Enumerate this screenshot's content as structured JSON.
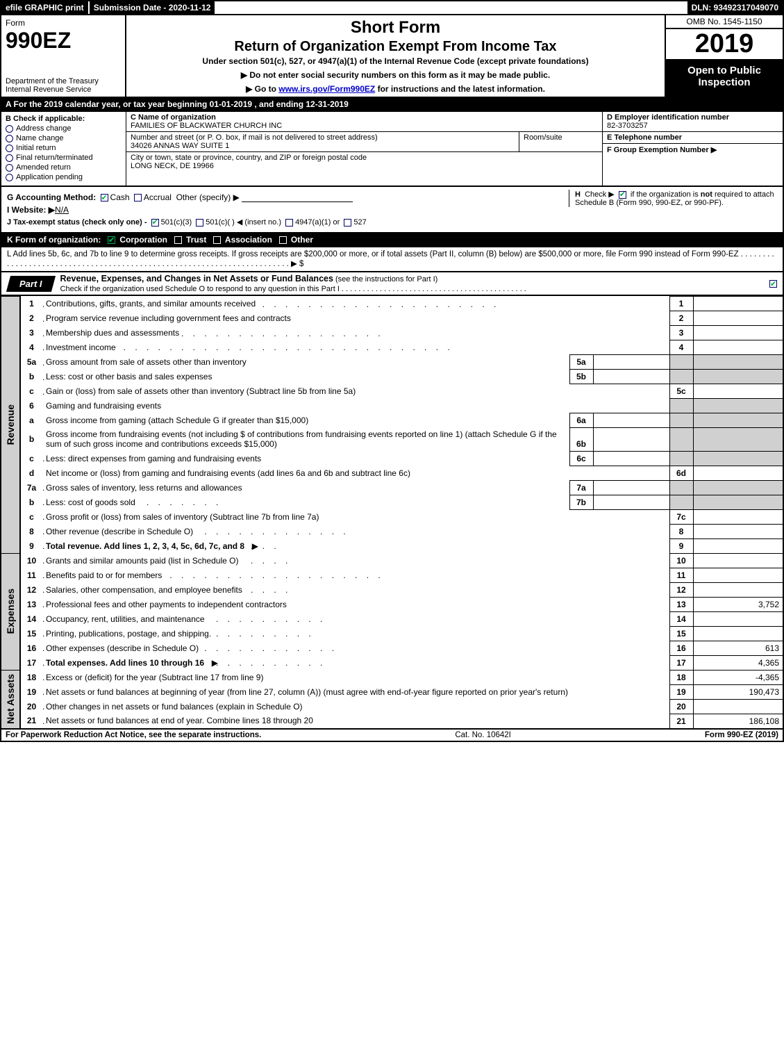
{
  "topbar": {
    "efile": "efile GRAPHIC print",
    "submission": "Submission Date - 2020-11-12",
    "dln": "DLN: 93492317049070"
  },
  "header": {
    "form_word": "Form",
    "form_no": "990EZ",
    "dept1": "Department of the Treasury",
    "dept2": "Internal Revenue Service",
    "short_form": "Short Form",
    "return_title": "Return of Organization Exempt From Income Tax",
    "under_sec": "Under section 501(c), 527, or 4947(a)(1) of the Internal Revenue Code (except private foundations)",
    "ssn_warn": "▶ Do not enter social security numbers on this form as it may be made public.",
    "goto": "▶ Go to ",
    "goto_link": "www.irs.gov/Form990EZ",
    "goto_tail": " for instructions and the latest information.",
    "omb": "OMB No. 1545-1150",
    "year": "2019",
    "open": "Open to Public Inspection"
  },
  "tax_year_bar": "A  For the 2019 calendar year, or tax year beginning 01-01-2019 , and ending 12-31-2019",
  "colB": {
    "hdr": "B  Check if applicable:",
    "items": [
      "Address change",
      "Name change",
      "Initial return",
      "Final return/terminated",
      "Amended return",
      "Application pending"
    ]
  },
  "colC": {
    "name_lbl": "C Name of organization",
    "name_val": "FAMILIES OF BLACKWATER CHURCH INC",
    "addr_lbl": "Number and street (or P. O. box, if mail is not delivered to street address)",
    "addr_val": "34026 ANNAS WAY SUITE 1",
    "room_lbl": "Room/suite",
    "city_lbl": "City or town, state or province, country, and ZIP or foreign postal code",
    "city_val": "LONG NECK, DE  19966"
  },
  "colDEF": {
    "d_lbl": "D Employer identification number",
    "d_val": "82-3703257",
    "e_lbl": "E Telephone number",
    "f_lbl": "F Group Exemption Number   ▶"
  },
  "gij": {
    "g": "G Accounting Method:",
    "g_cash": "Cash",
    "g_accrual": "Accrual",
    "g_other": "Other (specify) ▶",
    "i": "I Website: ▶",
    "i_val": "N/A",
    "j": "J Tax-exempt status (check only one) -",
    "j_1": "501(c)(3)",
    "j_2": "501(c)(   ) ◀ (insert no.)",
    "j_3": "4947(a)(1) or",
    "j_4": "527",
    "h": "H  Check ▶         if the organization is not required to attach Schedule B (Form 990, 990-EZ, or 990-PF)."
  },
  "k_bar": "K Form of organization:      Corporation      Trust      Association      Other",
  "l_line": "L Add lines 5b, 6c, and 7b to line 9 to determine gross receipts. If gross receipts are $200,000 or more, or if total assets (Part II, column (B) below) are $500,000 or more, file Form 990 instead of Form 990-EZ . . . . . . . . . . . . . . . . . . . . . . . . . . . . . . . . . . . . . . . . . . . . . . . . . . . . . . . . . . . . . . . . . . . . . . . . ▶ $",
  "part1": {
    "label": "Part I",
    "title": "Revenue, Expenses, and Changes in Net Assets or Fund Balances",
    "title_tail": " (see the instructions for Part I)",
    "sub": "Check if the organization used Schedule O to respond to any question in this Part I . . . . . . . . . . . . . . . . . . . . . . . . . . . . . . . . . . . . . . . . . . . ."
  },
  "sections": {
    "revenue": "Revenue",
    "expenses": "Expenses",
    "netassets": "Net Assets"
  },
  "lines": {
    "1": {
      "n": "1",
      "d": "Contributions, gifts, grants, and similar amounts received",
      "rn": "1",
      "rv": ""
    },
    "2": {
      "n": "2",
      "d": "Program service revenue including government fees and contracts",
      "rn": "2",
      "rv": ""
    },
    "3": {
      "n": "3",
      "d": "Membership dues and assessments",
      "rn": "3",
      "rv": ""
    },
    "4": {
      "n": "4",
      "d": "Investment income",
      "rn": "4",
      "rv": ""
    },
    "5a": {
      "n": "5a",
      "d": "Gross amount from sale of assets other than inventory",
      "mn": "5a"
    },
    "5b": {
      "n": "b",
      "d": "Less: cost or other basis and sales expenses",
      "mn": "5b"
    },
    "5c": {
      "n": "c",
      "d": "Gain or (loss) from sale of assets other than inventory (Subtract line 5b from line 5a)",
      "rn": "5c",
      "rv": ""
    },
    "6": {
      "n": "6",
      "d": "Gaming and fundraising events"
    },
    "6a": {
      "n": "a",
      "d": "Gross income from gaming (attach Schedule G if greater than $15,000)",
      "mn": "6a"
    },
    "6b": {
      "n": "b",
      "d": "Gross income from fundraising events (not including $                       of contributions from fundraising events reported on line 1) (attach Schedule G if the sum of such gross income and contributions exceeds $15,000)",
      "mn": "6b"
    },
    "6c": {
      "n": "c",
      "d": "Less: direct expenses from gaming and fundraising events",
      "mn": "6c"
    },
    "6d": {
      "n": "d",
      "d": "Net income or (loss) from gaming and fundraising events (add lines 6a and 6b and subtract line 6c)",
      "rn": "6d",
      "rv": ""
    },
    "7a": {
      "n": "7a",
      "d": "Gross sales of inventory, less returns and allowances",
      "mn": "7a"
    },
    "7b": {
      "n": "b",
      "d": "Less: cost of goods sold",
      "mn": "7b"
    },
    "7c": {
      "n": "c",
      "d": "Gross profit or (loss) from sales of inventory (Subtract line 7b from line 7a)",
      "rn": "7c",
      "rv": ""
    },
    "8": {
      "n": "8",
      "d": "Other revenue (describe in Schedule O)",
      "rn": "8",
      "rv": ""
    },
    "9": {
      "n": "9",
      "d": "Total revenue. Add lines 1, 2, 3, 4, 5c, 6d, 7c, and 8",
      "rn": "9",
      "rv": "",
      "arrow": "▶",
      "bold": true
    },
    "10": {
      "n": "10",
      "d": "Grants and similar amounts paid (list in Schedule O)",
      "rn": "10",
      "rv": ""
    },
    "11": {
      "n": "11",
      "d": "Benefits paid to or for members",
      "rn": "11",
      "rv": ""
    },
    "12": {
      "n": "12",
      "d": "Salaries, other compensation, and employee benefits",
      "rn": "12",
      "rv": ""
    },
    "13": {
      "n": "13",
      "d": "Professional fees and other payments to independent contractors",
      "rn": "13",
      "rv": "3,752"
    },
    "14": {
      "n": "14",
      "d": "Occupancy, rent, utilities, and maintenance",
      "rn": "14",
      "rv": ""
    },
    "15": {
      "n": "15",
      "d": "Printing, publications, postage, and shipping.",
      "rn": "15",
      "rv": ""
    },
    "16": {
      "n": "16",
      "d": "Other expenses (describe in Schedule O)",
      "rn": "16",
      "rv": "613"
    },
    "17": {
      "n": "17",
      "d": "Total expenses. Add lines 10 through 16",
      "rn": "17",
      "rv": "4,365",
      "arrow": "▶",
      "bold": true
    },
    "18": {
      "n": "18",
      "d": "Excess or (deficit) for the year (Subtract line 17 from line 9)",
      "rn": "18",
      "rv": "-4,365"
    },
    "19": {
      "n": "19",
      "d": "Net assets or fund balances at beginning of year (from line 27, column (A)) (must agree with end-of-year figure reported on prior year's return)",
      "rn": "19",
      "rv": "190,473"
    },
    "20": {
      "n": "20",
      "d": "Other changes in net assets or fund balances (explain in Schedule O)",
      "rn": "20",
      "rv": ""
    },
    "21": {
      "n": "21",
      "d": "Net assets or fund balances at end of year. Combine lines 18 through 20",
      "rn": "21",
      "rv": "186,108"
    }
  },
  "footer": {
    "pra": "For Paperwork Reduction Act Notice, see the separate instructions.",
    "cat": "Cat. No. 10642I",
    "formno": "Form 990-EZ (2019)"
  },
  "colors": {
    "black": "#000000",
    "white": "#ffffff",
    "shade": "#d0d0d0",
    "link": "#0000cc",
    "check": "#00aa55"
  }
}
